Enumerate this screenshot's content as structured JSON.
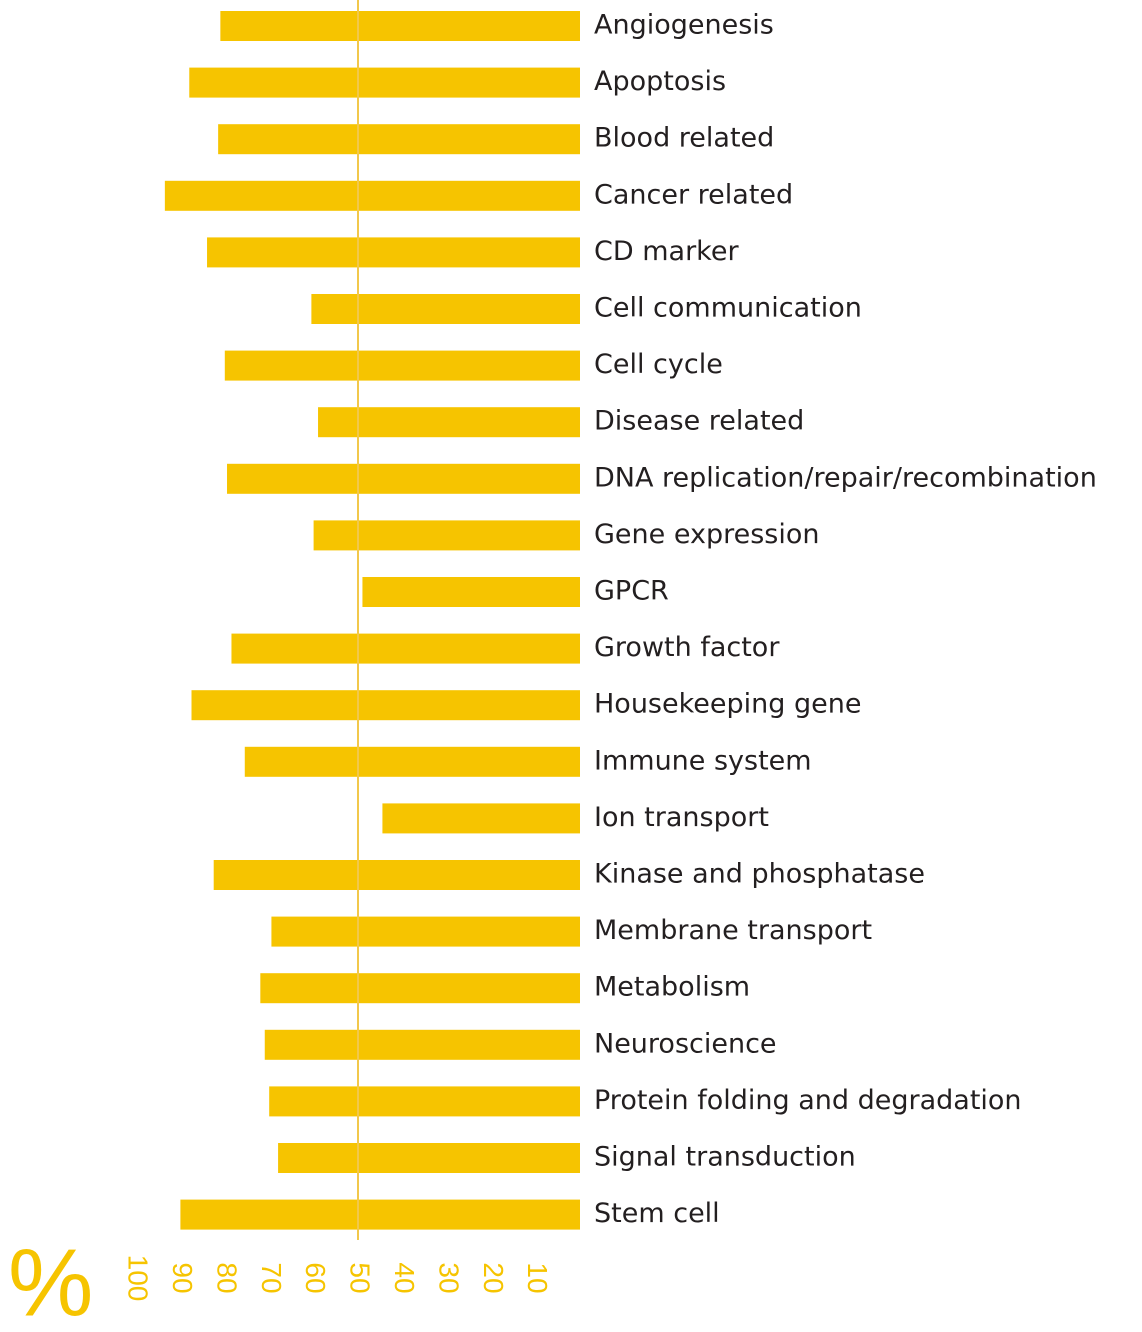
{
  "chart_data": {
    "type": "hbar",
    "x_label": "%",
    "categories": [
      "Angiogenesis",
      "Apoptosis",
      "Blood related",
      "Cancer related",
      "CD marker",
      "Cell communication",
      "Cell cycle",
      "Disease related",
      "DNA replication/repair/recombination",
      "Gene expression",
      "GPCR",
      "Growth factor",
      "Housekeeping gene",
      "Immune system",
      "Ion transport",
      "Kinase and phosphatase",
      "Membrane transport",
      "Metabolism",
      "Neuroscience",
      "Protein folding and degradation",
      "Signal transduction",
      "Stem cell"
    ],
    "values": [
      81,
      88,
      81.5,
      93.5,
      84,
      60.5,
      80,
      59,
      79.5,
      60,
      49,
      78.5,
      87.5,
      75.5,
      44.5,
      82.5,
      69.5,
      72,
      71,
      70,
      68,
      90
    ],
    "color": "#f6c400",
    "xlim": [
      0,
      100
    ],
    "xticks": [
      10,
      20,
      30,
      40,
      50,
      60,
      70,
      80,
      90,
      100
    ],
    "reference_line": 50,
    "reference_color": "#f2c84b"
  }
}
